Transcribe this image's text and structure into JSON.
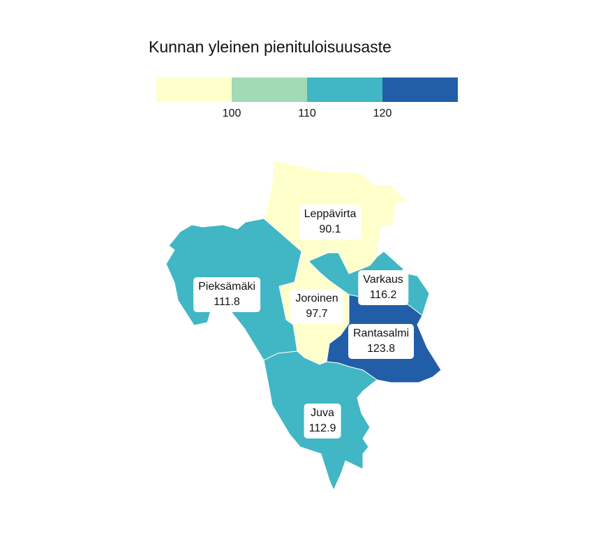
{
  "title": "Kunnan yleinen pienituloisuusaste",
  "legend": {
    "colors": [
      "#ffffcc",
      "#a1dab4",
      "#41b6c4",
      "#225ea8"
    ],
    "ticks": [
      "100",
      "110",
      "120"
    ]
  },
  "regions": [
    {
      "name": "Leppävirta",
      "value": "90.1",
      "color": "#ffffcc"
    },
    {
      "name": "Pieksämäki",
      "value": "111.8",
      "color": "#41b6c4"
    },
    {
      "name": "Joroinen",
      "value": "97.7",
      "color": "#ffffcc"
    },
    {
      "name": "Varkaus",
      "value": "116.2",
      "color": "#41b6c4"
    },
    {
      "name": "Rantasalmi",
      "value": "123.8",
      "color": "#225ea8"
    },
    {
      "name": "Juva",
      "value": "112.9",
      "color": "#41b6c4"
    }
  ]
}
